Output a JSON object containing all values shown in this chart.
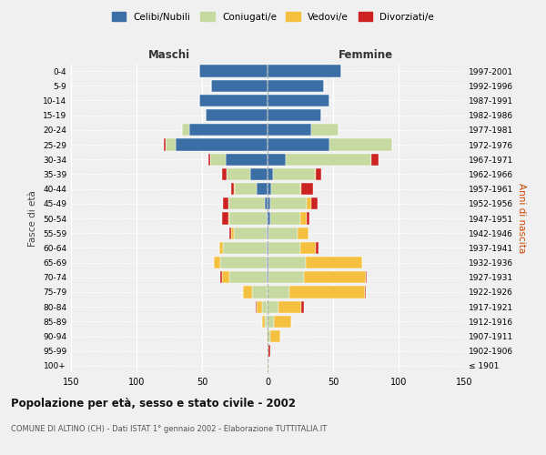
{
  "age_groups": [
    "100+",
    "95-99",
    "90-94",
    "85-89",
    "80-84",
    "75-79",
    "70-74",
    "65-69",
    "60-64",
    "55-59",
    "50-54",
    "45-49",
    "40-44",
    "35-39",
    "30-34",
    "25-29",
    "20-24",
    "15-19",
    "10-14",
    "5-9",
    "0-4"
  ],
  "birth_years": [
    "≤ 1901",
    "1902-1906",
    "1907-1911",
    "1912-1916",
    "1917-1921",
    "1922-1926",
    "1927-1931",
    "1932-1936",
    "1937-1941",
    "1942-1946",
    "1947-1951",
    "1952-1956",
    "1957-1961",
    "1962-1966",
    "1967-1971",
    "1972-1976",
    "1977-1981",
    "1982-1986",
    "1987-1991",
    "1992-1996",
    "1997-2001"
  ],
  "male": {
    "celibi": [
      0,
      0,
      0,
      0,
      0,
      0,
      1,
      1,
      1,
      1,
      1,
      2,
      8,
      13,
      32,
      70,
      60,
      47,
      52,
      43,
      52
    ],
    "coniugati": [
      0,
      0,
      0,
      2,
      4,
      12,
      28,
      35,
      33,
      25,
      28,
      28,
      17,
      18,
      12,
      8,
      5,
      0,
      0,
      0,
      0
    ],
    "vedovi": [
      0,
      0,
      1,
      2,
      4,
      7,
      6,
      5,
      3,
      2,
      1,
      0,
      1,
      0,
      0,
      0,
      0,
      0,
      0,
      0,
      0
    ],
    "divorziati": [
      0,
      0,
      0,
      0,
      1,
      0,
      1,
      0,
      0,
      1,
      5,
      4,
      2,
      4,
      1,
      1,
      0,
      0,
      0,
      0,
      0
    ]
  },
  "female": {
    "nubili": [
      0,
      0,
      0,
      0,
      0,
      0,
      1,
      1,
      1,
      1,
      2,
      2,
      3,
      4,
      14,
      47,
      33,
      41,
      47,
      43,
      56
    ],
    "coniugate": [
      0,
      0,
      2,
      5,
      8,
      17,
      27,
      28,
      24,
      22,
      23,
      28,
      22,
      32,
      65,
      48,
      21,
      0,
      0,
      0,
      0
    ],
    "vedove": [
      1,
      1,
      8,
      13,
      18,
      57,
      47,
      43,
      12,
      8,
      5,
      3,
      1,
      1,
      0,
      0,
      0,
      0,
      0,
      0,
      0
    ],
    "divorziate": [
      0,
      1,
      0,
      0,
      2,
      1,
      1,
      0,
      2,
      0,
      2,
      5,
      9,
      4,
      6,
      0,
      0,
      0,
      0,
      0,
      0
    ]
  },
  "colors": {
    "celibi": "#3a6ea5",
    "coniugati": "#c5d9a0",
    "vedovi": "#f5c040",
    "divorziati": "#cc2222"
  },
  "title": "Popolazione per età, sesso e stato civile - 2002",
  "subtitle": "COMUNE DI ALTINO (CH) - Dati ISTAT 1° gennaio 2002 - Elaborazione TUTTITALIA.IT",
  "xlabel_left": "Maschi",
  "xlabel_right": "Femmine",
  "ylabel_left": "Fasce di età",
  "ylabel_right": "Anni di nascita",
  "xlim": 150,
  "bg_color": "#f0f0f0",
  "plot_bg": "#f0f0f0"
}
